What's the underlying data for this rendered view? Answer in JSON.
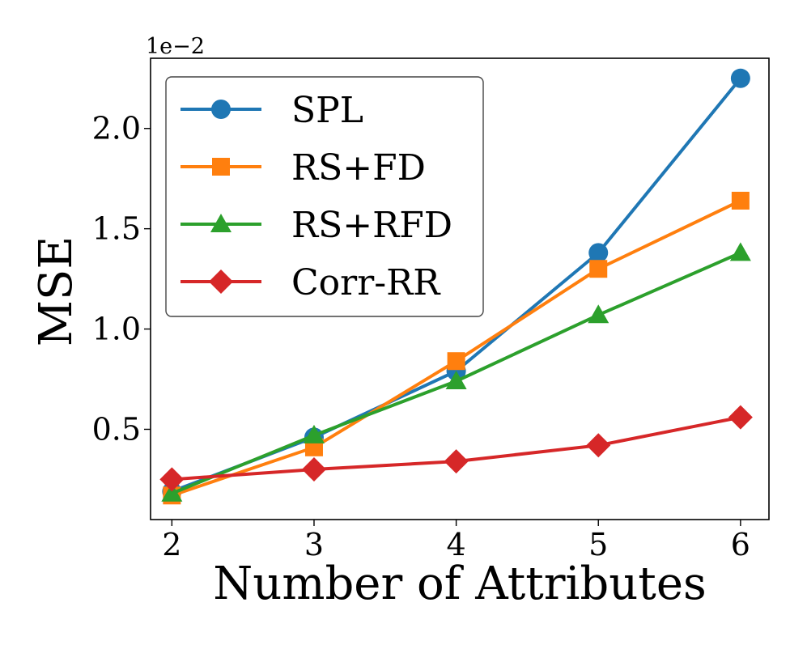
{
  "chart_data": {
    "type": "line",
    "title": "",
    "xlabel": "Number of Attributes",
    "ylabel": "MSE",
    "y_scale_label": "1e−2",
    "x": [
      2,
      3,
      4,
      5,
      6
    ],
    "x_tick_labels": [
      "2",
      "3",
      "4",
      "5",
      "6"
    ],
    "xlim": [
      1.85,
      6.2
    ],
    "y_ticks": [
      0.5,
      1.0,
      1.5,
      2.0
    ],
    "y_tick_labels": [
      "0.5",
      "1.0",
      "1.5",
      "2.0"
    ],
    "ylim": [
      0.05,
      2.35
    ],
    "grid": false,
    "legend_position": "top-left",
    "series": [
      {
        "name": "SPL",
        "color": "#1f77b4",
        "marker": "circle",
        "values": [
          0.19,
          0.46,
          0.79,
          1.38,
          2.25
        ]
      },
      {
        "name": "RS+FD",
        "color": "#ff7f0e",
        "marker": "square",
        "values": [
          0.17,
          0.41,
          0.84,
          1.3,
          1.64
        ]
      },
      {
        "name": "RS+RFD",
        "color": "#2ca02c",
        "marker": "triangle",
        "values": [
          0.18,
          0.47,
          0.74,
          1.07,
          1.38
        ]
      },
      {
        "name": "Corr-RR",
        "color": "#d62728",
        "marker": "diamond",
        "values": [
          0.25,
          0.3,
          0.34,
          0.42,
          0.56
        ]
      }
    ]
  }
}
